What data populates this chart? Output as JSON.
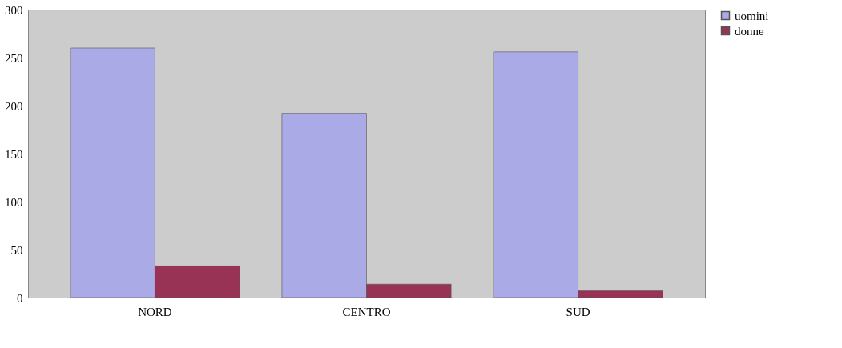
{
  "chart_data": {
    "type": "bar",
    "categories": [
      "NORD",
      "CENTRO",
      "SUD"
    ],
    "series": [
      {
        "name": "uomini",
        "color": "#aaaae6",
        "values": [
          260,
          192,
          256
        ]
      },
      {
        "name": "donne",
        "color": "#993355",
        "values": [
          33,
          14,
          7
        ]
      }
    ],
    "ylim": [
      0,
      300
    ],
    "yticks": [
      0,
      50,
      100,
      150,
      200,
      250,
      300
    ],
    "grid": "y",
    "legend": "right"
  }
}
